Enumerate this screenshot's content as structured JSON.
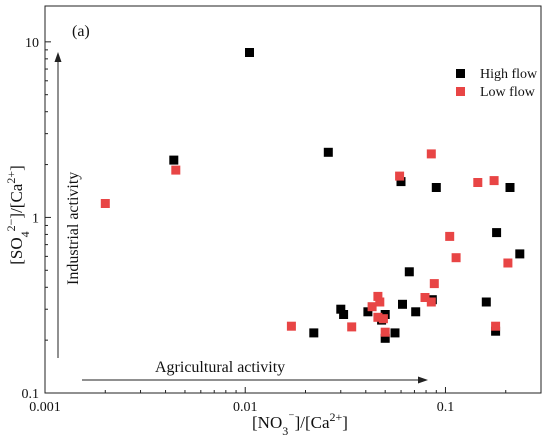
{
  "chart_data": {
    "type": "scatter",
    "panel_label": "(a)",
    "xlabel": "[NO3⁻]/[Ca²⁺]",
    "ylabel": "[SO4²⁻]/[Ca²⁺]",
    "x_scale": "log",
    "y_scale": "log",
    "xlim": [
      0.001,
      0.3
    ],
    "ylim": [
      0.1,
      16
    ],
    "x_ticks": [
      {
        "value": 0.001,
        "label": "0.001"
      },
      {
        "value": 0.01,
        "label": "0.01"
      },
      {
        "value": 0.1,
        "label": "0.1"
      }
    ],
    "y_ticks": [
      {
        "value": 0.1,
        "label": "0.1"
      },
      {
        "value": 1,
        "label": "1"
      },
      {
        "value": 10,
        "label": "10"
      }
    ],
    "grid": false,
    "legend_position": "top-right",
    "annotations": [
      {
        "text": "Industrial activity",
        "direction": "vertical-up"
      },
      {
        "text": "Agricultural activity",
        "direction": "horizontal-right"
      }
    ],
    "series": [
      {
        "name": "High flow",
        "color": "#000000",
        "marker": "square",
        "points": [
          {
            "x": 0.0105,
            "y": 8.7
          },
          {
            "x": 0.0044,
            "y": 2.12
          },
          {
            "x": 0.026,
            "y": 2.35
          },
          {
            "x": 0.06,
            "y": 1.6
          },
          {
            "x": 0.09,
            "y": 1.48
          },
          {
            "x": 0.21,
            "y": 1.48
          },
          {
            "x": 0.18,
            "y": 0.82
          },
          {
            "x": 0.235,
            "y": 0.62
          },
          {
            "x": 0.066,
            "y": 0.49
          },
          {
            "x": 0.16,
            "y": 0.33
          },
          {
            "x": 0.061,
            "y": 0.32
          },
          {
            "x": 0.086,
            "y": 0.34
          },
          {
            "x": 0.03,
            "y": 0.3
          },
          {
            "x": 0.031,
            "y": 0.28
          },
          {
            "x": 0.041,
            "y": 0.29
          },
          {
            "x": 0.071,
            "y": 0.29
          },
          {
            "x": 0.05,
            "y": 0.28
          },
          {
            "x": 0.048,
            "y": 0.26
          },
          {
            "x": 0.022,
            "y": 0.22
          },
          {
            "x": 0.056,
            "y": 0.22
          },
          {
            "x": 0.05,
            "y": 0.205
          },
          {
            "x": 0.178,
            "y": 0.225
          }
        ]
      },
      {
        "name": "Low flow",
        "color": "#e84545",
        "marker": "square",
        "points": [
          {
            "x": 0.002,
            "y": 1.2
          },
          {
            "x": 0.0045,
            "y": 1.86
          },
          {
            "x": 0.059,
            "y": 1.72
          },
          {
            "x": 0.085,
            "y": 2.3
          },
          {
            "x": 0.145,
            "y": 1.58
          },
          {
            "x": 0.175,
            "y": 1.62
          },
          {
            "x": 0.105,
            "y": 0.78
          },
          {
            "x": 0.113,
            "y": 0.59
          },
          {
            "x": 0.205,
            "y": 0.55
          },
          {
            "x": 0.088,
            "y": 0.42
          },
          {
            "x": 0.079,
            "y": 0.35
          },
          {
            "x": 0.085,
            "y": 0.33
          },
          {
            "x": 0.046,
            "y": 0.355
          },
          {
            "x": 0.047,
            "y": 0.33
          },
          {
            "x": 0.043,
            "y": 0.31
          },
          {
            "x": 0.046,
            "y": 0.27
          },
          {
            "x": 0.049,
            "y": 0.265
          },
          {
            "x": 0.017,
            "y": 0.24
          },
          {
            "x": 0.034,
            "y": 0.238
          },
          {
            "x": 0.05,
            "y": 0.222
          },
          {
            "x": 0.178,
            "y": 0.24
          }
        ]
      }
    ]
  }
}
